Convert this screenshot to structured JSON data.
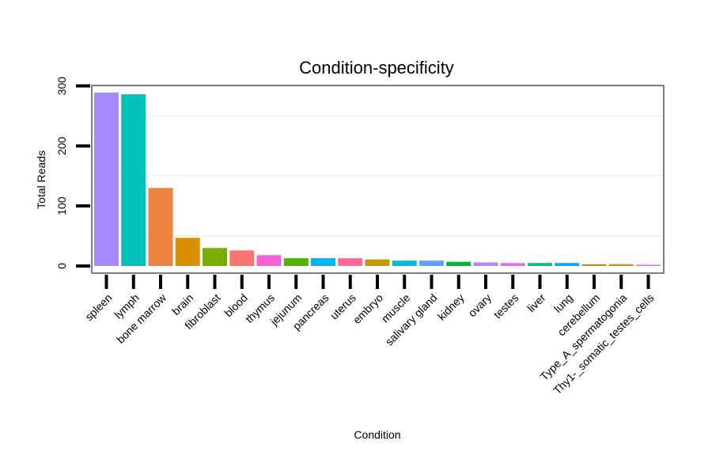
{
  "chart_data": {
    "type": "bar",
    "title": "Condition-specificity",
    "xlabel": "Condition",
    "ylabel": "Total Reads",
    "ylim": [
      -10,
      302
    ],
    "yticks": [
      0,
      100,
      200,
      300
    ],
    "grid": "horizontal minor",
    "categories": [
      "spleen",
      "lymph",
      "bone marrow",
      "brain",
      "fibroblast",
      "blood",
      "thymus",
      "jejunum",
      "pancreas",
      "uterus",
      "embryo",
      "muscle",
      "salivary gland",
      "kidney",
      "ovary",
      "testes",
      "liver",
      "lung",
      "cerebellum",
      "Type_A_spermatogonia",
      "Thy1-_somatic_testes_cells"
    ],
    "values": [
      289,
      286,
      130,
      47,
      30,
      26,
      18,
      13,
      13,
      13,
      11,
      9,
      9,
      7,
      6,
      5,
      5,
      5,
      3,
      3,
      2
    ],
    "colors": [
      "#A58AFF",
      "#00C0B8",
      "#ED813E",
      "#D89000",
      "#7CAE00",
      "#F8766D",
      "#FB61D7",
      "#53B400",
      "#00B6EB",
      "#FF6A98",
      "#C09B00",
      "#00BCD8",
      "#619CFF",
      "#00BA38",
      "#B983FF",
      "#E76BF3",
      "#00C08B",
      "#00A9FF",
      "#A3A500",
      "#E58700",
      "#F265E7"
    ]
  }
}
